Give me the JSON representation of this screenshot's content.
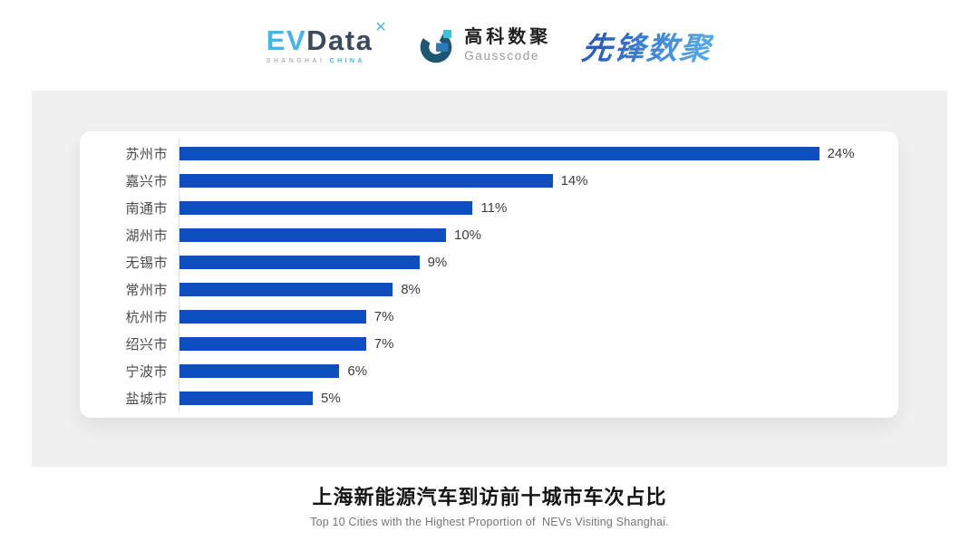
{
  "header": {
    "evdata": {
      "ev": "EV",
      "data": "Data",
      "star_icon": "✕",
      "sub_left": "SHANGHAI",
      "sub_right": "CHINA"
    },
    "gausscode": {
      "cn": "高科数聚",
      "en": "Gausscode"
    },
    "pioneer": {
      "text": "先锋数聚"
    }
  },
  "chart_data": {
    "type": "bar",
    "orientation": "horizontal",
    "title": "上海新能源汽车到访前十城市车次占比",
    "subtitle": "Top 10 Cities with the Highest Proportion of  NEVs Visiting Shanghai.",
    "categories": [
      "苏州市",
      "嘉兴市",
      "南通市",
      "湖州市",
      "无锡市",
      "常州市",
      "杭州市",
      "绍兴市",
      "宁波市",
      "盐城市"
    ],
    "values": [
      24,
      14,
      11,
      10,
      9,
      8,
      7,
      7,
      6,
      5
    ],
    "value_labels": [
      "24%",
      "14%",
      "11%",
      "10%",
      "9%",
      "8%",
      "7%",
      "7%",
      "6%",
      "5%"
    ],
    "unit": "%",
    "xlim": [
      0,
      24
    ],
    "bar_color": "#0d4ec1",
    "axis_line_color": "#dcdcdc",
    "grid": false,
    "legend": false
  }
}
